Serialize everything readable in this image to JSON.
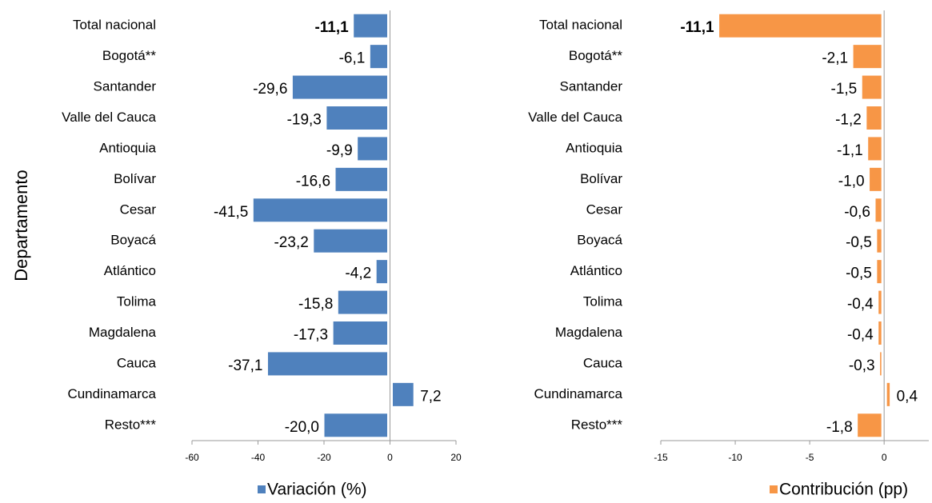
{
  "chart_data": [
    {
      "type": "bar",
      "orientation": "horizontal",
      "y_label": "Departamento",
      "categories": [
        "Total nacional",
        "Bogotá**",
        "Santander",
        "Valle del Cauca",
        "Antioquia",
        "Bolívar",
        "Cesar",
        "Boyacá",
        "Atlántico",
        "Tolima",
        "Magdalena",
        "Cauca",
        "Cundinamarca",
        "Resto***"
      ],
      "series": [
        {
          "name": "Variación (%)",
          "color": "#4f81bd",
          "values": [
            -11.1,
            -6.1,
            -29.6,
            -19.3,
            -9.9,
            -16.6,
            -41.5,
            -23.2,
            -4.2,
            -15.8,
            -17.3,
            -37.1,
            7.2,
            -20.0
          ],
          "value_labels": [
            "-11,1",
            "-6,1",
            "-29,6",
            "-19,3",
            "-9,9",
            "-16,6",
            "-41,5",
            "-23,2",
            "-4,2",
            "-15,8",
            "-17,3",
            "-37,1",
            "7,2",
            "-20,0"
          ]
        }
      ],
      "xlim": [
        -60,
        20
      ],
      "xticks": [
        -60,
        -40,
        -20,
        0,
        20
      ]
    },
    {
      "type": "bar",
      "orientation": "horizontal",
      "categories": [
        "Total nacional",
        "Bogotá**",
        "Santander",
        "Valle del Cauca",
        "Antioquia",
        "Bolívar",
        "Cesar",
        "Boyacá",
        "Atlántico",
        "Tolima",
        "Magdalena",
        "Cauca",
        "Cundinamarca",
        "Resto***"
      ],
      "series": [
        {
          "name": "Contribución (pp)",
          "color": "#f79646",
          "values": [
            -11.1,
            -2.1,
            -1.5,
            -1.2,
            -1.1,
            -1.0,
            -0.6,
            -0.5,
            -0.5,
            -0.4,
            -0.4,
            -0.3,
            0.4,
            -1.8
          ],
          "value_labels": [
            "-11,1",
            "-2,1",
            "-1,5",
            "-1,2",
            "-1,1",
            "-1,0",
            "-0,6",
            "-0,5",
            "-0,5",
            "-0,4",
            "-0,4",
            "-0,3",
            "0,4",
            "-1,8"
          ]
        }
      ],
      "xlim": [
        -15,
        3
      ],
      "xticks": [
        -15,
        -10,
        -5,
        0
      ]
    }
  ]
}
